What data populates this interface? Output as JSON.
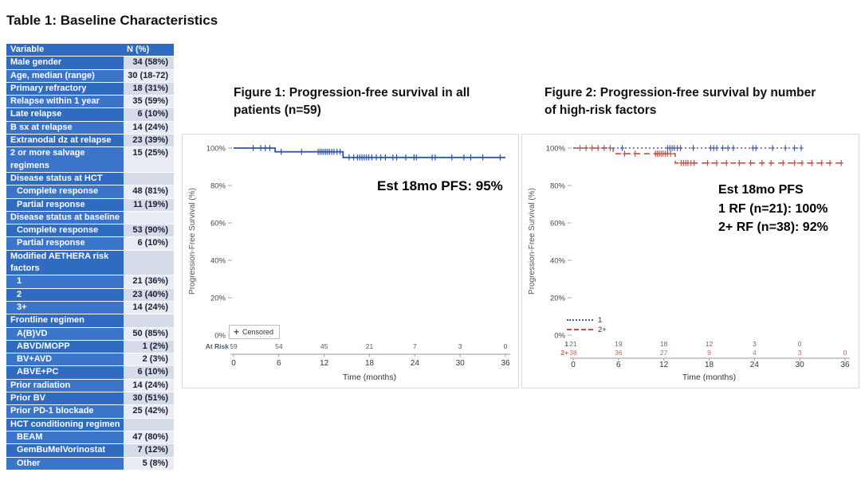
{
  "table": {
    "title": "Table 1: Baseline Characteristics",
    "headers": [
      "Variable",
      "N (%)"
    ],
    "colors": {
      "label_bg_a": "#2f6bc0",
      "label_bg_b": "#3a75c9",
      "value_bg_a": "#d5dbe9",
      "value_bg_b": "#e9ecf4",
      "header_bg": "#2f6bc0"
    },
    "rows": [
      {
        "label": "Male gender",
        "value": "34 (58%)",
        "indent": 0
      },
      {
        "label": "Age, median (range)",
        "value": "30 (18-72)",
        "indent": 0
      },
      {
        "label": "Primary refractory",
        "value": "18 (31%)",
        "indent": 0
      },
      {
        "label": "Relapse within 1 year",
        "value": "35 (59%)",
        "indent": 0
      },
      {
        "label": "Late relapse",
        "value": "6 (10%)",
        "indent": 0
      },
      {
        "label": "B sx at relapse",
        "value": "14 (24%)",
        "indent": 0
      },
      {
        "label": "Extranodal dz at relapse",
        "value": "23 (39%)",
        "indent": 0
      },
      {
        "label": "2 or more salvage regimens",
        "value": "15 (25%)",
        "indent": 0
      },
      {
        "label": "Disease status at HCT",
        "value": "",
        "indent": 0
      },
      {
        "label": "Complete response",
        "value": "48 (81%)",
        "indent": 1
      },
      {
        "label": "Partial response",
        "value": "11 (19%)",
        "indent": 1
      },
      {
        "label": "Disease status at baseline",
        "value": "",
        "indent": 0
      },
      {
        "label": "Complete response",
        "value": "53 (90%)",
        "indent": 1
      },
      {
        "label": "Partial response",
        "value": "6 (10%)",
        "indent": 1
      },
      {
        "label": "Modified AETHERA risk factors",
        "value": "",
        "indent": 0
      },
      {
        "label": "1",
        "value": "21 (36%)",
        "indent": 1
      },
      {
        "label": "2",
        "value": "23 (40%)",
        "indent": 1
      },
      {
        "label": "3+",
        "value": "14 (24%)",
        "indent": 1
      },
      {
        "label": "Frontline regimen",
        "value": "",
        "indent": 0
      },
      {
        "label": "A(B)VD",
        "value": "50 (85%)",
        "indent": 1
      },
      {
        "label": "ABVD/MOPP",
        "value": "1 (2%)",
        "indent": 1
      },
      {
        "label": "BV+AVD",
        "value": "2 (3%)",
        "indent": 1
      },
      {
        "label": "ABVE+PC",
        "value": "6 (10%)",
        "indent": 1
      },
      {
        "label": "Prior radiation",
        "value": "14 (24%)",
        "indent": 0
      },
      {
        "label": "Prior BV",
        "value": "30 (51%)",
        "indent": 0
      },
      {
        "label": "Prior PD-1 blockade",
        "value": "25 (42%)",
        "indent": 0
      },
      {
        "label": "HCT conditioning regimen",
        "value": "",
        "indent": 0
      },
      {
        "label": "BEAM",
        "value": "47 (80%)",
        "indent": 1
      },
      {
        "label": "GemBuMelVorinostat",
        "value": "7 (12%)",
        "indent": 1
      },
      {
        "label": "Other",
        "value": "5 (8%)",
        "indent": 1
      }
    ]
  },
  "figures": [
    {
      "line1": "Figure 1: Progression-free survival in all",
      "line2": "patients (n=59)"
    },
    {
      "line1": "Figure 2: Progression-free survival by number",
      "line2": "of high-risk factors"
    }
  ],
  "chart_data": [
    {
      "type": "line",
      "subtype": "kaplan-meier",
      "title": "Figure 1: Progression-free survival in all patients (n=59)",
      "xlabel": "Time (months)",
      "ylabel": "Progression-Free Survival (%)",
      "xlim": [
        0,
        36
      ],
      "ylim": [
        0,
        100
      ],
      "xticks": [
        0,
        6,
        12,
        18,
        24,
        30,
        36
      ],
      "ytick_labels": [
        "100%",
        "80%",
        "60%",
        "40%",
        "20%",
        "0%"
      ],
      "grid": false,
      "annotation": "Est 18mo PFS: 95%",
      "legend": [
        {
          "marker": "+",
          "label": "Censored"
        }
      ],
      "series": [
        {
          "name": "All patients",
          "color": "#3156a4",
          "style": "solid",
          "steps": [
            [
              0,
              100
            ],
            [
              5.5,
              100
            ],
            [
              5.5,
              98
            ],
            [
              14.5,
              98
            ],
            [
              14.5,
              95
            ],
            [
              36,
              95
            ]
          ],
          "censors": [
            [
              2.6,
              100
            ],
            [
              3.6,
              100
            ],
            [
              4.2,
              100
            ],
            [
              4.8,
              100
            ],
            [
              6.3,
              98
            ],
            [
              9,
              98
            ],
            [
              11.2,
              98
            ],
            [
              11.45,
              98
            ],
            [
              11.7,
              98
            ],
            [
              11.95,
              98
            ],
            [
              12.2,
              98
            ],
            [
              12.45,
              98
            ],
            [
              12.7,
              98
            ],
            [
              13.0,
              98
            ],
            [
              13.3,
              98
            ],
            [
              13.7,
              98
            ],
            [
              14.1,
              98
            ],
            [
              15.3,
              95
            ],
            [
              15.9,
              95
            ],
            [
              16.4,
              95
            ],
            [
              16.7,
              95
            ],
            [
              17.0,
              95
            ],
            [
              17.3,
              95
            ],
            [
              17.6,
              95
            ],
            [
              17.9,
              95
            ],
            [
              18.3,
              95
            ],
            [
              18.9,
              95
            ],
            [
              19.5,
              95
            ],
            [
              20.1,
              95
            ],
            [
              21.1,
              95
            ],
            [
              21.6,
              95
            ],
            [
              22.8,
              95
            ],
            [
              23.9,
              95
            ],
            [
              24.2,
              95
            ],
            [
              26.3,
              95
            ],
            [
              26.7,
              95
            ],
            [
              28.9,
              95
            ],
            [
              30.5,
              95
            ],
            [
              31.4,
              95
            ],
            [
              33.0,
              95
            ],
            [
              35.3,
              95
            ]
          ]
        }
      ],
      "at_risk": [
        {
          "label": "At Risk",
          "color": "#4f5a6b",
          "values": [
            [
              0,
              59
            ],
            [
              6,
              54
            ],
            [
              12,
              45
            ],
            [
              18,
              21
            ],
            [
              24,
              7
            ],
            [
              30,
              3
            ],
            [
              36,
              0
            ]
          ]
        }
      ],
      "est_18mo_pfs": "95%"
    },
    {
      "type": "line",
      "subtype": "kaplan-meier",
      "title": "Figure 2: Progression-free survival by number of high-risk factors",
      "xlabel": "Time (months)",
      "ylabel": "Progression-Free Survival (%)",
      "xlim": [
        0,
        36
      ],
      "ylim": [
        0,
        100
      ],
      "xticks": [
        0,
        6,
        12,
        18,
        24,
        30,
        36
      ],
      "ytick_labels": [
        "100%",
        "80%",
        "60%",
        "40%",
        "20%",
        "0%"
      ],
      "grid": false,
      "annotation_lines": [
        "Est 18mo PFS",
        "1 RF (n=21): 100%",
        "2+ RF (n=38): 92%"
      ],
      "legend": [
        {
          "style": "dotted",
          "label": "1"
        },
        {
          "style": "dashed",
          "label": "2+"
        }
      ],
      "series": [
        {
          "name": "1",
          "color": "#4a5ea8",
          "style": "dotted",
          "steps": [
            [
              0,
              100
            ],
            [
              30.2,
              100
            ]
          ],
          "censors": [
            [
              6.5,
              100
            ],
            [
              12.5,
              100
            ],
            [
              12.8,
              100
            ],
            [
              13.1,
              100
            ],
            [
              13.4,
              100
            ],
            [
              13.8,
              100
            ],
            [
              14.2,
              100
            ],
            [
              15.9,
              100
            ],
            [
              18.2,
              100
            ],
            [
              18.6,
              100
            ],
            [
              19.0,
              100
            ],
            [
              19.8,
              100
            ],
            [
              20.5,
              100
            ],
            [
              21.2,
              100
            ],
            [
              23.8,
              100
            ],
            [
              24.2,
              100
            ],
            [
              26.4,
              100
            ],
            [
              28.1,
              100
            ],
            [
              29.3,
              100
            ],
            [
              30.2,
              100
            ]
          ]
        },
        {
          "name": "2+",
          "color": "#bf514d",
          "style": "dashed",
          "steps": [
            [
              0,
              100
            ],
            [
              5.3,
              100
            ],
            [
              5.3,
              97
            ],
            [
              13.5,
              97
            ],
            [
              13.5,
              92
            ],
            [
              36,
              92
            ]
          ],
          "censors": [
            [
              0.9,
              100
            ],
            [
              1.7,
              100
            ],
            [
              2.5,
              100
            ],
            [
              3.3,
              100
            ],
            [
              4.1,
              100
            ],
            [
              4.9,
              100
            ],
            [
              6.8,
              97
            ],
            [
              8.2,
              97
            ],
            [
              10.9,
              97
            ],
            [
              11.15,
              97
            ],
            [
              11.4,
              97
            ],
            [
              11.65,
              97
            ],
            [
              11.9,
              97
            ],
            [
              12.2,
              97
            ],
            [
              12.5,
              97
            ],
            [
              12.9,
              97
            ],
            [
              14.3,
              92
            ],
            [
              14.6,
              92
            ],
            [
              14.9,
              92
            ],
            [
              15.2,
              92
            ],
            [
              15.6,
              92
            ],
            [
              16.0,
              92
            ],
            [
              17.8,
              92
            ],
            [
              19.0,
              92
            ],
            [
              20.3,
              92
            ],
            [
              22.0,
              92
            ],
            [
              23.5,
              92
            ],
            [
              25.0,
              92
            ],
            [
              26.2,
              92
            ],
            [
              27.8,
              92
            ],
            [
              29.3,
              92
            ],
            [
              30.3,
              92
            ],
            [
              31.6,
              92
            ],
            [
              32.9,
              92
            ],
            [
              34.0,
              92
            ],
            [
              35.5,
              92
            ]
          ]
        }
      ],
      "at_risk": [
        {
          "label": "1",
          "color": "#5f6b7a",
          "values": [
            [
              0,
              21
            ],
            [
              6,
              19
            ],
            [
              12,
              18
            ],
            [
              18,
              12
            ],
            [
              24,
              3
            ],
            [
              30,
              0
            ]
          ]
        },
        {
          "label": "2+",
          "color": "#bf6a62",
          "values": [
            [
              0,
              38
            ],
            [
              6,
              36
            ],
            [
              12,
              27
            ],
            [
              18,
              9
            ],
            [
              24,
              4
            ],
            [
              30,
              3
            ],
            [
              36,
              0
            ]
          ]
        }
      ],
      "est_18mo_pfs": {
        "1 RF (n=21)": "100%",
        "2+ RF (n=38)": "92%"
      }
    }
  ]
}
